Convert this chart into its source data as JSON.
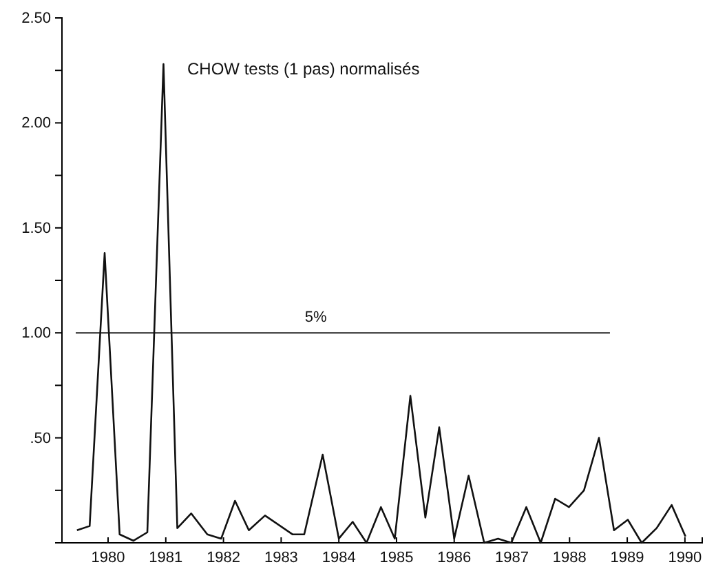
{
  "chart_data": {
    "type": "line",
    "title": "CHOW tests (1 pas) normalisés",
    "x": [
      1979.46,
      1979.68,
      1979.94,
      1980.2,
      1980.44,
      1980.68,
      1980.96,
      1981.2,
      1981.44,
      1981.72,
      1981.96,
      1982.2,
      1982.44,
      1982.72,
      1983.2,
      1983.4,
      1983.72,
      1984.0,
      1984.24,
      1984.48,
      1984.73,
      1984.97,
      1985.24,
      1985.5,
      1985.74,
      1986.0,
      1986.25,
      1986.52,
      1986.76,
      1986.99,
      1987.25,
      1987.5,
      1987.75,
      1987.99,
      1988.25,
      1988.51,
      1988.77,
      1989.01,
      1989.25,
      1989.51,
      1989.77,
      1990.01
    ],
    "series": [
      {
        "color": "#111111",
        "values": [
          0.06,
          0.08,
          1.38,
          0.04,
          0.01,
          0.05,
          2.28,
          0.07,
          0.14,
          0.04,
          0.02,
          0.2,
          0.06,
          0.13,
          0.04,
          0.04,
          0.42,
          0.02,
          0.1,
          0.0,
          0.17,
          0.02,
          0.7,
          0.12,
          0.55,
          0.02,
          0.32,
          0.0,
          0.02,
          0.0,
          0.17,
          0.0,
          0.21,
          0.17,
          0.25,
          0.5,
          0.06,
          0.11,
          0.0,
          0.07,
          0.18,
          0.03
        ]
      }
    ],
    "xlim": [
      1979.2,
      1990.3
    ],
    "xticks": [
      1980,
      1981,
      1982,
      1983,
      1984,
      1985,
      1986,
      1987,
      1988,
      1989,
      1990
    ],
    "ylim": [
      0,
      2.5
    ],
    "yticks": [
      {
        "value": 0.25,
        "label": null
      },
      {
        "value": 0.5,
        "label": ".50"
      },
      {
        "value": 0.75,
        "label": null
      },
      {
        "value": 1,
        "label": "1.00"
      },
      {
        "value": 1.25,
        "label": null
      },
      {
        "value": 1.5,
        "label": "1.50"
      },
      {
        "value": 1.75,
        "label": null
      },
      {
        "value": 2,
        "label": "2.00"
      },
      {
        "value": 2.25,
        "label": null
      },
      {
        "value": 2.5,
        "label": "2.50"
      }
    ],
    "ref_lines": [
      {
        "axis": "y",
        "value": 1,
        "color": "#222222"
      }
    ],
    "annotations": [
      {
        "text": "5%",
        "x": 1983.6,
        "y": 1
      }
    ],
    "grid": false,
    "marker": "none",
    "line_style": "solid"
  }
}
